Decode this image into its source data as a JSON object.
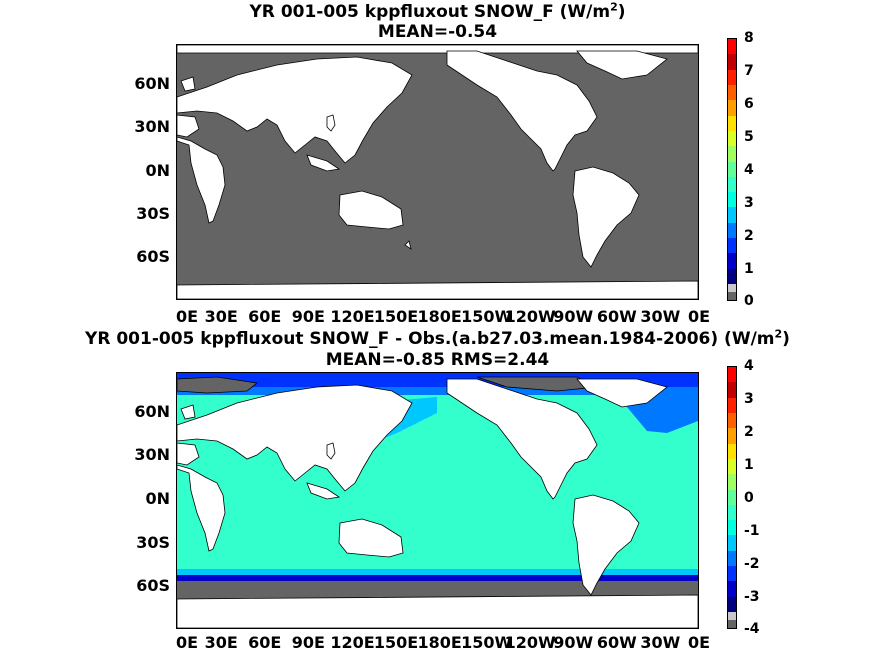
{
  "panel1": {
    "title_main": "YR 001-005 kppfluxout  SNOW_F (W/m",
    "title_sup": "2",
    "title_end": ")",
    "subtitle": "MEAN=-0.54",
    "colorbar_labels": [
      "8",
      "7",
      "6",
      "5",
      "4",
      "3",
      "2",
      "1",
      "0"
    ],
    "ocean_color": "#646464"
  },
  "panel2": {
    "title_main": "YR 001-005 kppfluxout SNOW_F - Obs.(a.b27.03.mean.1984-2006) (W/m",
    "title_sup": "2",
    "title_end": ")",
    "subtitle": "MEAN=-0.85 RMS=2.44",
    "colorbar_labels": [
      "4",
      "3",
      "2",
      "1",
      "0",
      "-1",
      "-2",
      "-3",
      "-4"
    ],
    "ocean_color": "#33ffcc"
  },
  "lat_labels": [
    "60N",
    "30N",
    "0N",
    "30S",
    "60S"
  ],
  "lon_labels": [
    "0E",
    "30E",
    "60E",
    "90E",
    "120E",
    "150E",
    "180E",
    "150W",
    "120W",
    "90W",
    "60W",
    "30W",
    "0E"
  ],
  "colorbar_colors": [
    "#000080",
    "#0000c8",
    "#0032ff",
    "#0078ff",
    "#00c8ff",
    "#00ffe0",
    "#33ffcc",
    "#60ff9a",
    "#a0ff60",
    "#d8ff28",
    "#ffe000",
    "#ffa000",
    "#ff6000",
    "#ff2000",
    "#c00000",
    "#ff0000"
  ],
  "missing_color": "#c8c8c8",
  "land_color": "#ffffff"
}
